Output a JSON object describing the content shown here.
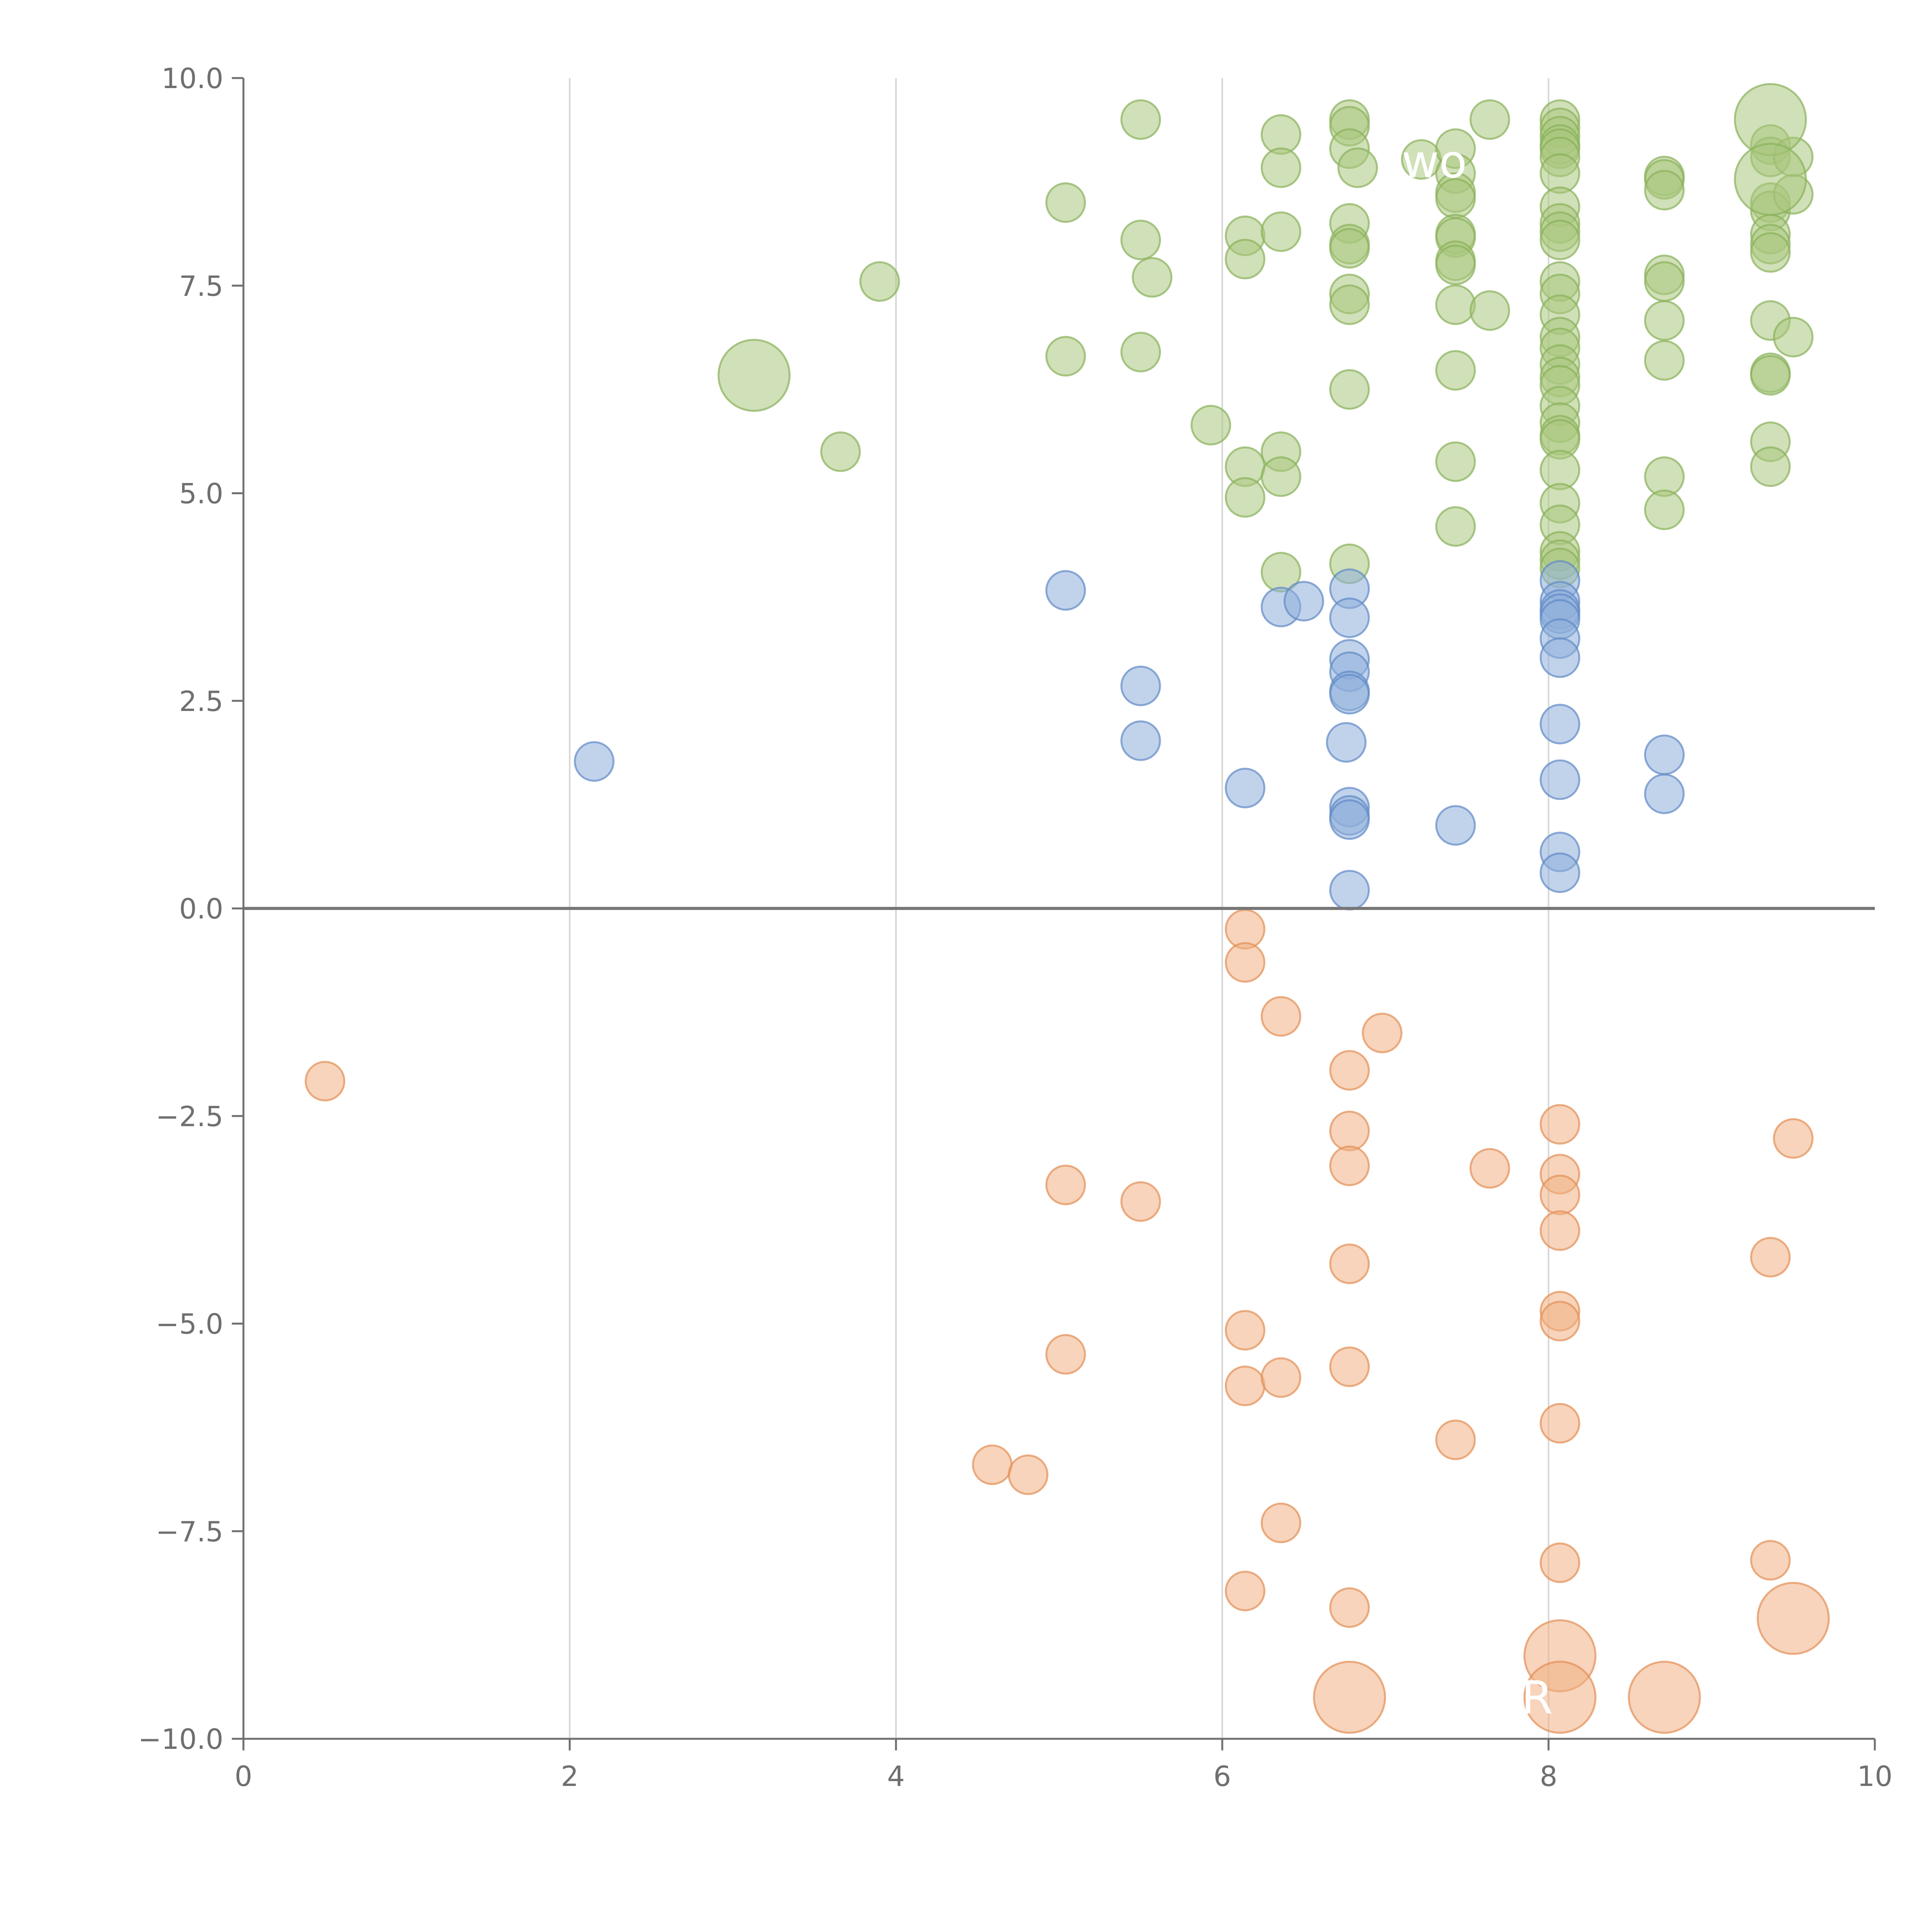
{
  "chart_data": {
    "type": "scatter",
    "title": "",
    "xlabel": "",
    "ylabel": "",
    "xlim": [
      0,
      10
    ],
    "ylim": [
      -10,
      10
    ],
    "x_ticks": [
      0,
      2,
      4,
      6,
      8,
      10
    ],
    "x_tick_labels": [
      "0",
      "2",
      "4",
      "6",
      "8",
      "10"
    ],
    "y_ticks": [
      10,
      7.5,
      5,
      2.5,
      0,
      -2.5,
      -5,
      -7.5,
      -10
    ],
    "y_tick_labels": [
      "10.0",
      "7.5",
      "5.0",
      "2.5",
      "0.0",
      "−2.5",
      "−5.0",
      "−7.5",
      "−10.0"
    ],
    "x_grid": true,
    "y_grid": false,
    "zero_line": true,
    "legend": "none",
    "colors": {
      "green_fill": "#a9c77e",
      "green_stroke": "#89b05a",
      "blue_fill": "#8eaedb",
      "blue_stroke": "#5f89c6",
      "orange_fill": "#f0b184",
      "orange_stroke": "#e38f55",
      "axis": "#707070",
      "grid": "#d6d6d6"
    },
    "series": [
      {
        "color": "green",
        "points": [
          [
            3.9,
            7.55
          ],
          [
            3.66,
            5.5
          ],
          [
            5.04,
            8.5
          ],
          [
            5.04,
            6.65
          ],
          [
            5.5,
            9.5
          ],
          [
            5.5,
            8.05
          ],
          [
            5.5,
            6.7
          ],
          [
            5.57,
            7.6
          ],
          [
            5.93,
            5.82
          ],
          [
            6.14,
            8.1
          ],
          [
            6.14,
            7.82
          ],
          [
            6.14,
            5.32
          ],
          [
            6.14,
            4.95
          ],
          [
            6.36,
            9.32
          ],
          [
            6.36,
            8.92
          ],
          [
            6.36,
            8.15
          ],
          [
            6.36,
            5.5
          ],
          [
            6.36,
            5.2
          ],
          [
            6.36,
            4.05
          ],
          [
            6.78,
            9.5
          ],
          [
            6.78,
            9.42
          ],
          [
            6.78,
            9.15
          ],
          [
            6.78,
            8.25
          ],
          [
            6.78,
            8.0
          ],
          [
            6.78,
            7.95
          ],
          [
            6.78,
            7.4
          ],
          [
            6.78,
            7.27
          ],
          [
            6.78,
            6.25
          ],
          [
            6.78,
            4.15
          ],
          [
            6.83,
            8.92
          ],
          [
            7.22,
            9.02
          ],
          [
            7.43,
            9.15
          ],
          [
            7.43,
            8.85
          ],
          [
            7.43,
            8.62
          ],
          [
            7.43,
            8.55
          ],
          [
            7.43,
            8.12
          ],
          [
            7.43,
            8.08
          ],
          [
            7.43,
            7.8
          ],
          [
            7.43,
            7.75
          ],
          [
            7.43,
            7.27
          ],
          [
            7.43,
            6.48
          ],
          [
            7.43,
            5.38
          ],
          [
            7.43,
            4.6
          ],
          [
            7.64,
            9.5
          ],
          [
            7.64,
            7.2
          ],
          [
            8.07,
            9.5
          ],
          [
            8.07,
            9.4
          ],
          [
            8.07,
            9.3
          ],
          [
            8.07,
            9.2
          ],
          [
            8.07,
            9.15
          ],
          [
            8.07,
            9.05
          ],
          [
            8.07,
            8.85
          ],
          [
            8.07,
            8.45
          ],
          [
            8.07,
            8.25
          ],
          [
            8.07,
            8.15
          ],
          [
            8.07,
            8.05
          ],
          [
            8.07,
            7.55
          ],
          [
            8.07,
            7.4
          ],
          [
            8.07,
            7.15
          ],
          [
            8.07,
            6.88
          ],
          [
            8.07,
            6.75
          ],
          [
            8.07,
            6.55
          ],
          [
            8.07,
            6.4
          ],
          [
            8.07,
            6.3
          ],
          [
            8.07,
            6.05
          ],
          [
            8.07,
            5.85
          ],
          [
            8.07,
            5.7
          ],
          [
            8.07,
            5.65
          ],
          [
            8.07,
            5.28
          ],
          [
            8.07,
            4.88
          ],
          [
            8.07,
            4.62
          ],
          [
            8.07,
            4.3
          ],
          [
            8.07,
            4.2
          ],
          [
            8.07,
            4.1
          ],
          [
            8.71,
            8.82
          ],
          [
            8.71,
            8.78
          ],
          [
            8.71,
            8.65
          ],
          [
            8.71,
            7.63
          ],
          [
            8.71,
            7.55
          ],
          [
            8.71,
            7.08
          ],
          [
            8.71,
            6.6
          ],
          [
            8.71,
            5.2
          ],
          [
            8.71,
            4.8
          ],
          [
            9.36,
            9.2
          ],
          [
            9.36,
            9.05
          ],
          [
            9.36,
            8.5
          ],
          [
            9.36,
            8.4
          ],
          [
            9.36,
            8.12
          ],
          [
            9.36,
            8.0
          ],
          [
            9.36,
            7.9
          ],
          [
            9.36,
            7.08
          ],
          [
            9.36,
            6.45
          ],
          [
            9.36,
            6.42
          ],
          [
            9.36,
            5.62
          ],
          [
            9.36,
            5.32
          ],
          [
            9.5,
            9.05
          ],
          [
            9.5,
            8.6
          ],
          [
            9.5,
            6.88
          ]
        ]
      },
      {
        "color": "blue",
        "points": [
          [
            2.15,
            1.77
          ],
          [
            5.04,
            3.83
          ],
          [
            5.5,
            2.68
          ],
          [
            5.5,
            2.02
          ],
          [
            6.14,
            1.45
          ],
          [
            6.36,
            3.63
          ],
          [
            6.5,
            3.7
          ],
          [
            6.76,
            2.0
          ],
          [
            6.78,
            3.85
          ],
          [
            6.78,
            3.5
          ],
          [
            6.78,
            3.0
          ],
          [
            6.78,
            2.85
          ],
          [
            6.78,
            2.62
          ],
          [
            6.78,
            2.58
          ],
          [
            6.78,
            1.22
          ],
          [
            6.78,
            1.12
          ],
          [
            6.78,
            1.07
          ],
          [
            6.78,
            0.22
          ],
          [
            7.43,
            1.0
          ],
          [
            8.07,
            3.95
          ],
          [
            8.07,
            3.7
          ],
          [
            8.07,
            3.6
          ],
          [
            8.07,
            3.55
          ],
          [
            8.07,
            3.48
          ],
          [
            8.07,
            3.25
          ],
          [
            8.07,
            3.02
          ],
          [
            8.07,
            2.22
          ],
          [
            8.07,
            1.55
          ],
          [
            8.07,
            0.68
          ],
          [
            8.07,
            0.43
          ],
          [
            8.71,
            1.85
          ],
          [
            8.71,
            1.38
          ]
        ]
      },
      {
        "color": "orange",
        "points": [
          [
            0.5,
            -2.08
          ],
          [
            4.59,
            -6.7
          ],
          [
            4.81,
            -6.82
          ],
          [
            5.04,
            -3.33
          ],
          [
            5.04,
            -5.37
          ],
          [
            5.5,
            -3.53
          ],
          [
            6.14,
            -0.25
          ],
          [
            6.14,
            -0.65
          ],
          [
            6.14,
            -5.08
          ],
          [
            6.14,
            -5.75
          ],
          [
            6.14,
            -8.22
          ],
          [
            6.36,
            -1.3
          ],
          [
            6.36,
            -5.65
          ],
          [
            6.36,
            -7.4
          ],
          [
            6.78,
            -1.95
          ],
          [
            6.78,
            -2.68
          ],
          [
            6.78,
            -3.1
          ],
          [
            6.78,
            -4.28
          ],
          [
            6.78,
            -5.52
          ],
          [
            6.78,
            -8.42
          ],
          [
            6.98,
            -1.5
          ],
          [
            7.43,
            -6.4
          ],
          [
            7.64,
            -3.13
          ],
          [
            8.07,
            -2.6
          ],
          [
            8.07,
            -3.2
          ],
          [
            8.07,
            -3.45
          ],
          [
            8.07,
            -3.88
          ],
          [
            8.07,
            -4.85
          ],
          [
            8.07,
            -4.97
          ],
          [
            8.07,
            -6.2
          ],
          [
            8.07,
            -7.88
          ],
          [
            9.36,
            -4.2
          ],
          [
            9.36,
            -7.85
          ],
          [
            9.5,
            -2.77
          ]
        ]
      }
    ],
    "large_bubbles": [
      {
        "color": "green",
        "x": 3.13,
        "y": 6.42,
        "label": ""
      },
      {
        "color": "green",
        "x": 9.36,
        "y": 9.5,
        "label": ""
      },
      {
        "color": "green",
        "x": 9.36,
        "y": 8.78,
        "label": ""
      },
      {
        "color": "orange",
        "x": 9.5,
        "y": -8.55,
        "label": ""
      },
      {
        "color": "orange",
        "x": 8.07,
        "y": -9.0,
        "label": ""
      },
      {
        "color": "orange",
        "x": 6.78,
        "y": -9.5,
        "label": ""
      },
      {
        "color": "orange",
        "x": 8.07,
        "y": -9.5,
        "label": ""
      },
      {
        "color": "orange",
        "x": 8.71,
        "y": -9.5,
        "label": ""
      }
    ],
    "annotations": [
      {
        "text": "wo",
        "x": 7.3,
        "y": 9.0,
        "anchor": "middle"
      },
      {
        "text": "R",
        "x": 7.93,
        "y": -9.5,
        "anchor": "middle"
      }
    ]
  }
}
